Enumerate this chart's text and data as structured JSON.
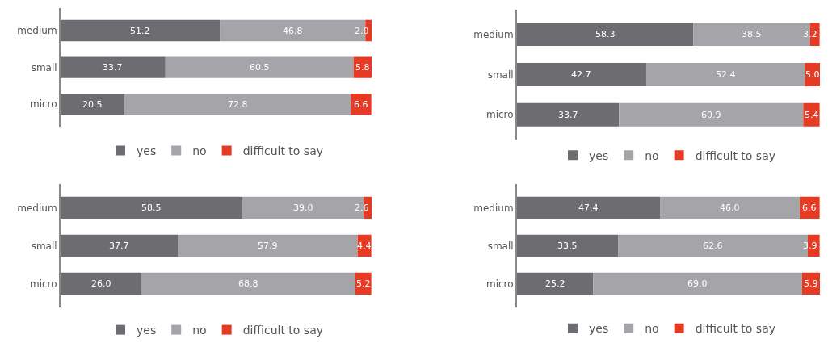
{
  "chart_data": [
    {
      "type": "bar",
      "orientation": "horizontal",
      "stacked": true,
      "data_labels": true,
      "legend": "bottom",
      "categories": [
        "medium",
        "small",
        "micro"
      ],
      "series": [
        {
          "name": "yes",
          "color": "#6d6c70",
          "values": [
            51.2,
            33.7,
            20.5
          ]
        },
        {
          "name": "no",
          "color": "#a5a4a8",
          "values": [
            46.8,
            60.5,
            72.8
          ]
        },
        {
          "name": "difficult to say",
          "color": "#e53a24",
          "values": [
            2.0,
            5.8,
            6.6
          ],
          "value_labels": [
            "2.0",
            "5.8",
            "6.6"
          ]
        }
      ]
    },
    {
      "type": "bar",
      "orientation": "horizontal",
      "stacked": true,
      "data_labels": true,
      "legend": "bottom",
      "categories": [
        "medium",
        "small",
        "micro"
      ],
      "series": [
        {
          "name": "yes",
          "color": "#6d6c70",
          "values": [
            58.3,
            42.7,
            33.7
          ]
        },
        {
          "name": "no",
          "color": "#a5a4a8",
          "values": [
            38.5,
            52.4,
            60.9
          ]
        },
        {
          "name": "difficult to say",
          "color": "#e53a24",
          "values": [
            3.2,
            5.0,
            5.4
          ],
          "value_labels": [
            "3.2",
            "5.0",
            "5.4"
          ]
        }
      ]
    },
    {
      "type": "bar",
      "orientation": "horizontal",
      "stacked": true,
      "data_labels": true,
      "legend": "bottom",
      "categories": [
        "medium",
        "small",
        "micro"
      ],
      "series": [
        {
          "name": "yes",
          "color": "#6d6c70",
          "values": [
            58.5,
            37.7,
            26.0
          ],
          "value_labels": [
            "58.5",
            "37.7",
            "26.0"
          ]
        },
        {
          "name": "no",
          "color": "#a5a4a8",
          "values": [
            39.0,
            57.9,
            68.8
          ],
          "value_labels": [
            "39.0",
            "57.9",
            "68.8"
          ]
        },
        {
          "name": "difficult to say",
          "color": "#e53a24",
          "values": [
            2.6,
            4.4,
            5.2
          ],
          "value_labels": [
            "2.6",
            "4.4",
            "5.2"
          ]
        }
      ]
    },
    {
      "type": "bar",
      "orientation": "horizontal",
      "stacked": true,
      "data_labels": true,
      "legend": "bottom",
      "categories": [
        "medium",
        "small",
        "micro"
      ],
      "series": [
        {
          "name": "yes",
          "color": "#6d6c70",
          "values": [
            47.4,
            33.5,
            25.2
          ]
        },
        {
          "name": "no",
          "color": "#a5a4a8",
          "values": [
            46.0,
            62.6,
            69.0
          ],
          "value_labels": [
            "46.0",
            "62.6",
            "69.0"
          ]
        },
        {
          "name": "difficult to say",
          "color": "#e53a24",
          "values": [
            6.6,
            3.9,
            5.9
          ]
        }
      ]
    }
  ]
}
